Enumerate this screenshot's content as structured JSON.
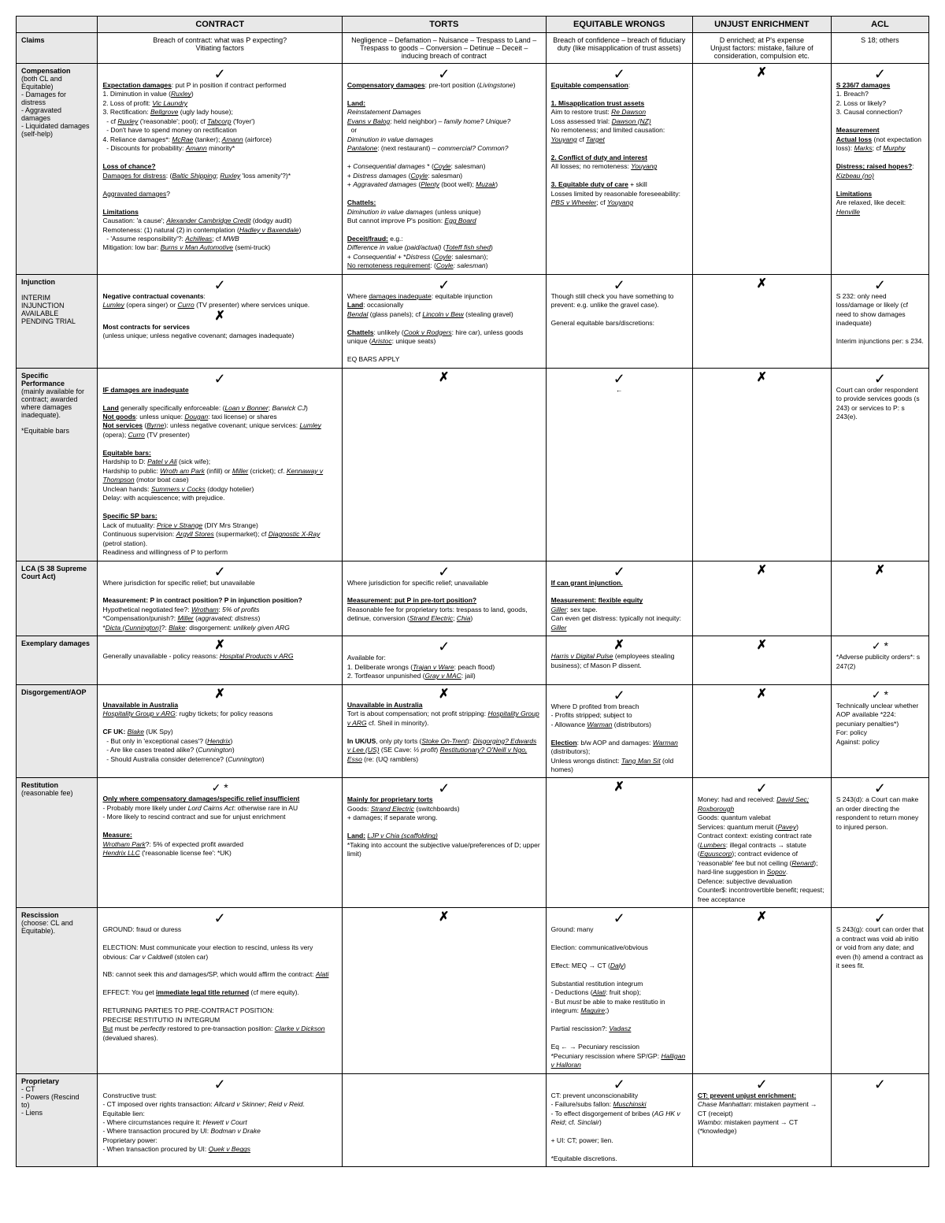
{
  "headers": [
    "",
    "CONTRACT",
    "TORTS",
    "EQUITABLE WRONGS",
    "UNJUST ENRICHMENT",
    "ACL"
  ],
  "rows": [
    {
      "head": "<b>Claims</b>",
      "cells": [
        "<div class='center'>Breach of contract: what was P expecting?<br>Vitiating factors</div>",
        "<div class='center'>Negligence – Defamation – Nuisance – Trespass to Land – Trespass to goods – Conversion – Detinue – Deceit – inducing breach of contract</div>",
        "<div class='center'>Breach of confidence – breach of fiduciary duty (like misapplication of trust assets)</div>",
        "<div class='center'>D enriched; at P's expense<br>Unjust factors: mistake, failure of consideration, compulsion etc.</div>",
        "<div class='center'>S 18; others</div>"
      ]
    },
    {
      "head": "<b>Compensation</b><br>(both CL and Equitable)<br>- Damages for distress<br>- Aggravated damages<br>- Liquidated damages<br>(self-help)",
      "cells": [
        "<div class='tick'>✓</div><div class='cell'><b><u>Expectation damages</u></b>: put P in position if contract performed<br>1. Diminution in value (<i><u>Ruxley</u></i>)<br>2. Loss of profit: <i><u>Vic Laundry</u></i><br>3. Rectification: <i><u>Bellgrove</u></i> (ugly lady house);<br>&nbsp;&nbsp;- cf <i><u>Ruxley</u></i> ('reasonable'; pool); cf <i><u>Tabcorp</u></i> ('foyer')<br>&nbsp;&nbsp;- Don't have to spend money on rectification<br>4. Reliance damages*: <i><u>McRae</u></i> (tanker); <i><u>Amann</u></i> (airforce)<br>&nbsp;&nbsp;- Discounts for probability: <i><u>Amann</u></i> minority*<br><br><b><u>Loss of chance?</u></b><br><u>Damages for distress</u>: (<i><u>Baltic Shipping</u></i>; <i><u>Ruxley</u></i> 'loss amenity'?)*<br><br><u>Aggravated damages</u>?<br><br><b><u>Limitations</u></b><br>Causation: 'a cause'; <i><u>Alexander Cambridge Credit</u></i> (dodgy audit)<br>Remoteness: (1) natural (2) in contemplation (<i><u>Hadley v Baxendale</u></i>)<br>&nbsp;&nbsp;- 'Assume responsibility'?: <i><u>Achilleas</u></i>; cf <i>MWB</i><br>Mitigation: low bar: <i><u>Burns v Man Automotive</u></i> (semi-truck)</div>",
        "<div class='tick'>✓</div><div class='cell'><b><u>Compensatory damages</u></b>: pre-tort position (<i>Livingstone</i>)<br><br><b><u>Land:</u></b><br><i>Reinstatement Damages</i><br><i><u>Evans v Balog</u></i>: held neighbor) – <i>family home? Unique?</i><br>&nbsp;&nbsp;or<br><i>Diminution in value damages</i><br><i><u>Pantalone</u></i>: (next restaurant) – <i>commercial? Common?</i><br><br>+ <i>Consequential damages</i> * (<i><u>Coyle</u></i>: salesman)<br>+ <i>Distress damages</i> (<i><u>Coyle</u></i>: salesman)<br>+ <i>Aggravated damages</i> (<i><u>Plenty</u></i> (boot well); <i><u>Muzak</u></i>)<br><br><b><u>Chattels:</u></b><br><i>Diminution in value damages</i> (unless unique)<br>But cannot improve P's position: <i><u>Egg Board</u></i><br><br><b><u>Deceit/fraud:</u></b> e.g.:<br><i>Difference in value (paid/actual)</i> (<i><u>Toteff fish shed</u></i>)<br>+ <i>Consequential</i> + *<i>Distress</i> (<i><u>Coyle</u></i>: salesman);<br><u>No remoteness requirement</u>: (<i><u>Coyle</u>: salesman</i>)</div>",
        "<div class='tick'>✓</div><div class='cell'><b><u>Equitable compensation</u></b>:<br><br><b><u>1. Misapplication trust assets</u></b><br>Aim to restore trust: <i><u>Re Dawson</u></i><br>Loss assessed trial: <i><u>Dawson (NZ)</u></i><br>No remoteness; and limited causation: <i><u>Youyang</u></i> cf <i><u>Target</u></i><br><br><b><u>2. Conflict of duty and interest</u></b><br>All losses; no remoteness: <i><u>Youyang</u></i><br><br><b><u>3. Equitable duty of care</u></b> + skill<br>Losses limited by reasonable foreseeability: <i><u>PBS v Wheeler</u></i>; cf <i><u>Youyang</u></i></div>",
        "<div class='cross'>✗</div>",
        "<div class='tick'>✓</div><div class='cell'><b><u>S 236/7 damages</u></b><br>1. Breach?<br>2. Loss or likely?<br>3. Causal connection?<br><br><b><u>Measurement</u></b><br><b><u>Actual loss</u></b> (not expectation loss): <i><u>Marks</u></i>; cf <i><u>Murphy</u></i><br><br><b><u>Distress; raised hopes?</u></b>: <i><u>Kizbeau (no)</u></i><br><br><b><u>Limitations</u></b><br>Are relaxed, like deceit: <i><u>Henville</u></i></div>"
      ]
    },
    {
      "head": "<b>Injunction</b><br><br>INTERIM INJUNCTION AVAILABLE PENDING TRIAL",
      "cells": [
        "<div class='tick'>✓</div><div class='cell'><b>Negative contractual covenants</b>:<br><i><u>Lumley</u></i> (opera singer) or <i><u>Curro</u></i> (TV presenter) where services unique.</div><div class='cross'>✗</div><div class='cell'><b>Most contracts for services</b><br>(unless unique; unless negative covenant; damages inadequate)</div>",
        "<div class='tick'>✓</div><div class='cell'>Where <u>damages inadequate</u>: equitable injunction<br><b><u>Land</u></b>: occasionally<br><i><u>Bendal</u></i> (glass panels); cf <i><u>Lincoln v Bew</u></i> (stealing gravel)<br><br><b><u>Chattels</u></b>: unlikely (<i><u>Cook v Rodgers</u></i>: hire car), unless goods unique (<i><u>Aristoc</u></i>: unique seats)<br><br>EQ BARS APPLY</div>",
        "<div class='tick'>✓</div><div class='cell'>Though still check you have something to prevent: e.g. unlike the gravel case).<br><br>General equitable bars/discretions:</div>",
        "<div class='cross'>✗</div>",
        "<div class='tick'>✓</div><div class='cell'>S 232: only need loss/damage or likely (cf need to show damages inadequate)<br><br>Interim injunctions per: s 234.</div>"
      ]
    },
    {
      "head": "<b>Specific Performance</b><br>(mainly available for contract; awarded where damages inadequate).<br><br>*Equitable bars",
      "cells": [
        "<div class='tick'>✓</div><div class='cell'><b><u>IF damages are inadequate</u></b><br><br><b><u>Land</u></b> generally specifically enforceable: (<i><u>Loan v Bonner</u></i>; <i>Barwick CJ</i>)<br><b><u>Not goods</u></b>: unless unique: <i><u>Dougan</u></i>: taxi license) or shares<br><b><u>Not services</u></b> (<i><u>Byrne</u></i>): unless negative covenant; unique services: <i><u>Lumley</u></i> (opera); <i><u>Curro</u></i> (TV presenter)<br><br><b><u>Equitable bars:</u></b><br>Hardship to D: <i><u>Patel v Ali</u></i> (sick wife);<br>Hardship to public: <i><u>Wroth am Park</u></i> (infill) or <i><u>Miller</u></i> (cricket); cf. <i><u>Kennaway v Thompson</u></i> (motor boat case)<br>Unclean hands: <i><u>Summers v Cocks</u></i> (dodgy hotelier)<br>Delay: with acquiescence; with prejudice.<br><br><b><u>Specific SP bars:</u></b><br>Lack of mutuality: <i><u>Price v Strange</u></i> (DIY Mrs Strange)<br>Continuous supervision: <i><u>Argyll Stores</u></i> (supermarket); cf <i><u>Diagnostic X-Ray</u></i> (petrol station).<br>Readiness and willingness of P to perform</div>",
        "<div class='cross'>✗</div>",
        "<div class='tick'>✓</div><div class='cell center'>←</div>",
        "<div class='cross'>✗</div>",
        "<div class='tick'>✓</div><div class='cell'>Court can order respondent to provide services goods (s 243) or services to P: s 243(e).</div>"
      ]
    },
    {
      "head": "<b>LCA (S 38 Supreme Court Act)</b>",
      "cells": [
        "<div class='tick'>✓</div><div class='cell'>Where jurisdiction for specific relief; but unavailable<br><br><b>Measurement: P in contract position? P in injunction position?</b><br>Hypothetical negotiated fee?: <i><u>Wrotham</u></i>: <i>5% of profits</i><br>*Compensation/punish?: <i><u>Miller</u></i> (<i>aggravated; distress</i>)<br>*<i><u>Dicta (Cunnington)</u></i>?: <i><u>Blake</u></i>: disgorgement: <i>unlikely given ARG</i></div>",
        "<div class='tick'>✓</div><div class='cell'>Where jurisdiction for specific relief; unavailable<br><br><b><u>Measurement: put P in pre-tort position?</u></b><br>Reasonable fee for proprietary torts: trespass to land, goods, detinue, conversion (<i><u>Strand Electric</u></i>; <i><u>Chia</u></i>)</div>",
        "<div class='tick'>✓</div><div class='cell'><b><u>If can grant injunction.</u></b><br><br><b><u>Measurement: flexible equity</u></b><br><i><u>Giller</u></i>: sex tape.<br>Can even get distress: typically not inequity: <i><u>Giller</u></i></div>",
        "<div class='cross'>✗</div>",
        "<div class='cross'>✗</div>"
      ]
    },
    {
      "head": "<b>Exemplary damages</b>",
      "cells": [
        "<div class='cross'>✗</div><div class='cell'>Generally unavailable - policy reasons: <i><u>Hospital Products v ARG</u></i></div>",
        "<div class='tick'>✓</div><div class='cell'>Available for:<br>1. Deliberate wrongs (<i><u>Trajan v Ware</u></i>: peach flood)<br>2. Tortfeasor unpunished (<i><u>Gray v MAC</u></i>: jail)</div>",
        "<div class='cross'>✗</div><div class='cell'><i><u>Harris v Digital Pulse</u></i> (employees stealing business); cf Mason P dissent.</div>",
        "<div class='cross'>✗</div>",
        "<div class='tickstar'>✓ *</div><div class='cell'>*Adverse publicity orders*: s 247(2)</div>"
      ]
    },
    {
      "head": "<b>Disgorgement/AOP</b>",
      "cells": [
        "<div class='cross'>✗</div><div class='cell'><b><u>Unavailable in Australia</u></b><br><i><u>Hospitality Group v ARG</u></i>: rugby tickets; for policy reasons<br><br><b>CF UK:</b> <i><u>Blake</u></i> (UK Spy)<br>&nbsp;&nbsp;- But only in 'exceptional cases'? (<i><u>Hendrix</u></i>)<br>&nbsp;&nbsp;- Are like cases treated alike? (<i>Cunnington</i>)<br>&nbsp;&nbsp;- Should Australia consider deterrence? (<i>Cunnington</i>)</div>",
        "<div class='cross'>✗</div><div class='cell'><b><u>Unavailable in Australia</u></b><br>Tort is about compensation; not profit stripping: <i><u>Hospitality Group v ARG</u></i> cf. Sheil in minority).<br><br><b>In UK/US</b>, only pty torts (<i><u>Stoke On-Trent</u></i>): <i><u>Disgorging? Edwards v Lee (US)</u></i> (SE Cave: <i>⅓ profit</i>) <i><u>Restitutionary? O'Neill v Ngo, Esso</u></i> (re: (UQ ramblers)</div>",
        "<div class='tick'>✓</div><div class='cell'>Where D profited from breach<br>- Profits stripped; subject to<br>- Allowance <i><u>Warman</u></i> (distributors)<br><br><b><u>Election</u></b>: b/w AOP and damages: <i><u>Warman</u></i> (distributors);<br>Unless wrongs distinct: <i><u>Tang Man Sit</u></i> (old homes)</div>",
        "<div class='cross'>✗</div>",
        "<div class='tickstar'>✓ *</div><div class='cell'>Technically unclear whether AOP available *224: pecuniary penalties*)<br>For: policy<br>Against: policy</div>"
      ]
    },
    {
      "head": "<b>Restitution</b><br>(reasonable fee)",
      "cells": [
        "<div class='tickstar'>✓ *</div><div class='cell'><b><u>Only where compensatory damages/specific relief insufficient</u></b><br>- Probably more likely under <i>Lord Cairns Act</i>: otherwise rare in AU<br>- More likely to rescind contract and sue for unjust enrichment<br><br><b><u>Measure:</u></b><br><i><u>Wrotham Park</u></i>?: 5% of expected profit awarded<br><i><u>Hendrix LLC</u></i> ('reasonable license fee': *UK)</div>",
        "<div class='tick'>✓</div><div class='cell'><b><u>Mainly for proprietary torts</u></b><br>Goods: <i><u>Strand Electric</u></i> (switchboards)<br>+ damages; if separate wrong.<br><br><b><u>Land:</u></b> <i><u>LJP v Chia (scaffolding)</u></i><br>*Taking into account the subjective value/preferences of D; upper limit)</div>",
        "<div class='cross'>✗</div>",
        "<div class='tick'>✓</div><div class='cell'>Money: had and received: <i><u>David Sec; Roxborough</u></i><br>Goods: quantum valebat<br>Services: quantum meruit (<i><u>Pavey</u></i>)<br>Contract context: existing contract rate (<i><u>Lumbers</u></i>: illegal contracts → statute (<i><u>Equuscorp</u></i>); contract evidence of 'reasonable' fee but not ceiling (<i><u>Renard</u></i>); hard-line suggestion in <i><u>Sopov</u></i>.<br>Defence: subjective devaluation<br>Counter$: incontrovertible benefit; request; free acceptance</div>",
        "<div class='tick'>✓</div><div class='cell'>S 243(d): a Court can make an order directing the respondent to return money to injured person.</div>"
      ]
    },
    {
      "head": "<b>Rescission</b><br>(choose: CL and Equitable).",
      "cells": [
        "<div class='tick'>✓</div><div class='cell'>GROUND: fraud or duress<br><br>ELECTION: Must communicate your election to rescind, unless its very obvious: <i>Car v Caldwell</i> (stolen car)<br><br>NB: cannot seek this <i>and</i> damages/SP, which would affirm the contract: <i><u>Alati</u></i><br><br>EFFECT: You get <b><u>immediate legal title returned</u></b> (cf mere equity).<br><br>RETURNING PARTIES TO PRE-CONTRACT POSITION:<br>PRECISE RESTITUTIO IN INTEGRUM<br><u>But</u> must be <i>perfectly</i> restored to pre-transaction position: <i><u>Clarke v Dickson</u></i> (devalued shares).</div>",
        "<div class='cross'>✗</div>",
        "<div class='tick'>✓</div><div class='cell'>Ground: many<br><br>Election: communicative/obvious<br><br>Effect: MEQ → CT (<i><u>Daly</u></i>)<br><br>Substantial restitution integrum<br>- Deductions (<i><u>Alati</u></i>: fruit shop);<br>- But <i>must</i> be able to make restitutio in integrum: <i><u>Maguire</u></i>;)<br><br>Partial rescission?: <i><u>Vadasz</u></i><br><br>Eq ← → Pecuniary rescission<br>*Pecuniary rescission where SP/GP: <i><u>Halligan v Halloran</u></i></div>",
        "<div class='cross'>✗</div>",
        "<div class='tick'>✓</div><div class='cell'>S 243(g): court can order that a contract was void ab initio or void from any date; and even (h) amend a contract as it sees fit.</div>"
      ]
    },
    {
      "head": "<b>Proprietary</b><br>- CT<br>- Powers (Rescind<br> to)<br>- Liens",
      "cells": [
        "<div class='tick'>✓</div><div class='cell'>Constructive trust:<br>- CT imposed over rights transaction: <i>Allcard v Skinner</i>; <i>Reid v Reid</i>.<br>Equitable lien:<br>- Where circumstances require it: <i>Hewett v Court</i><br>- Where transaction procured by UI: <i>Bodman v Drake</i><br>Proprietary power:<br>- When transaction procured by UI: <i><u>Quek v Beggs</u></i></div>",
        "",
        "<div class='tick'>✓</div><div class='cell'>CT: prevent unconscionability<br>- Failure/subs fallon: <i><u>Muschinski</u></i><br>- To effect disgorgement of bribes (<i>AG HK v Reid</i>; cf. <i>Sinclair</i>)<br><br>+ UI: CT; power; lien.<br><br>*Equitable discretions.</div>",
        "<div class='tick'>✓</div><div class='cell'><b><u>CT: prevent unjust enrichment:</u></b><br><i>Chase Manhattan</i>: mistaken payment → CT (receipt)<br><i>Wambo</i>: mistaken payment → CT (*knowledge)</div>",
        "<div class='tick'>✓</div>"
      ]
    }
  ]
}
